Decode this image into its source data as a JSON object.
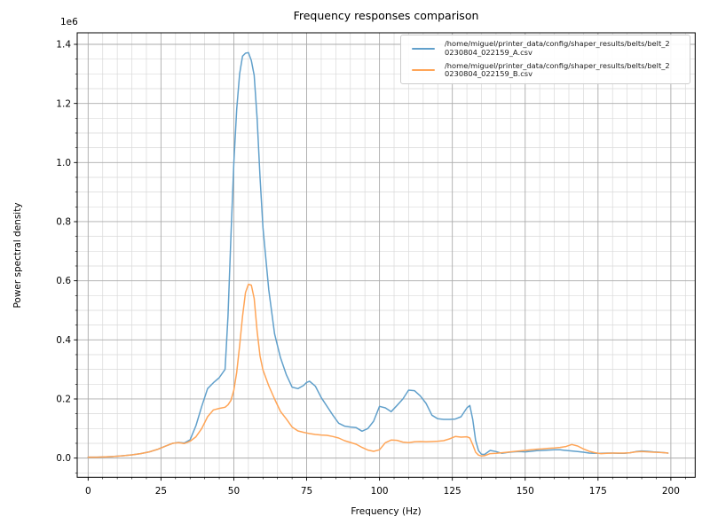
{
  "figure": {
    "title": "Frequency responses comparison",
    "xlabel": "Frequency (Hz)",
    "ylabel": "Power spectral density",
    "offset_text": "1e6",
    "background": "#ffffff"
  },
  "legend": {
    "entries": [
      {
        "line1": "/home/miguel/printer_data/config/shaper_results/belts/belt_2",
        "line2": "0230804_022159_A.csv",
        "color": "#61a0cb"
      },
      {
        "line1": "/home/miguel/printer_data/config/shaper_results/belts/belt_2",
        "line2": "0230804_022159_B.csv",
        "color": "#ffa557"
      }
    ]
  },
  "chart_data": {
    "type": "line",
    "title": "Frequency responses comparison",
    "xlabel": "Frequency (Hz)",
    "ylabel": "Power spectral density",
    "y_offset_factor": "1e6",
    "grid": "both",
    "legend_position": "upper right",
    "xlim": [
      -3.75,
      208.35
    ],
    "ylim": [
      -65000,
      1439000
    ],
    "x_major_ticks": [
      0,
      25,
      50,
      75,
      100,
      125,
      150,
      175,
      200
    ],
    "x_tick_labels": [
      "0",
      "25",
      "50",
      "75",
      "100",
      "125",
      "150",
      "175",
      "200"
    ],
    "x_minor_ticks": [
      5,
      10,
      15,
      20,
      30,
      35,
      40,
      45,
      55,
      60,
      65,
      70,
      80,
      85,
      90,
      95,
      105,
      110,
      115,
      120,
      130,
      135,
      140,
      145,
      155,
      160,
      165,
      170,
      180,
      185,
      190,
      195,
      205
    ],
    "y_major_ticks": [
      0,
      200000,
      400000,
      600000,
      800000,
      1000000,
      1200000,
      1400000
    ],
    "y_tick_labels": [
      "0.0",
      "0.2",
      "0.4",
      "0.6",
      "0.8",
      "1.0",
      "1.2",
      "1.4"
    ],
    "y_minor_ticks": [
      -50000,
      50000,
      100000,
      150000,
      250000,
      300000,
      350000,
      450000,
      500000,
      550000,
      650000,
      700000,
      750000,
      850000,
      900000,
      950000,
      1050000,
      1100000,
      1150000,
      1250000,
      1300000,
      1350000
    ],
    "x": [
      0,
      3,
      6,
      9,
      12,
      15,
      18,
      21,
      24,
      27,
      29,
      31,
      33,
      35,
      37,
      39,
      41,
      43,
      45,
      47,
      48,
      49,
      50,
      51,
      52,
      53,
      54,
      55,
      56,
      57,
      58,
      59,
      60,
      62,
      64,
      66,
      68,
      70,
      72,
      74,
      75,
      76,
      78,
      80,
      82,
      84,
      86,
      88,
      90,
      92,
      94,
      96,
      98,
      100,
      102,
      104,
      106,
      108,
      110,
      112,
      114,
      116,
      118,
      120,
      122,
      124,
      126,
      128,
      130,
      131,
      132,
      133,
      134,
      135,
      136,
      138,
      140,
      142,
      144,
      146,
      148,
      150,
      152,
      154,
      156,
      158,
      160,
      162,
      164,
      166,
      168,
      170,
      172,
      174,
      176,
      178,
      180,
      182,
      184,
      186,
      188,
      190,
      192,
      194,
      196,
      198,
      199
    ],
    "series": [
      {
        "name": "/home/miguel/printer_data/config/shaper_results/belts/belt_20230804_022159_A.csv",
        "color": "#61a0cb",
        "values": [
          3000,
          3000,
          4000,
          5500,
          8000,
          11000,
          15000,
          21000,
          30000,
          42000,
          50000,
          53000,
          51000,
          62000,
          110000,
          175000,
          235000,
          255000,
          272000,
          300000,
          480000,
          750000,
          1000000,
          1180000,
          1300000,
          1360000,
          1370000,
          1372000,
          1345000,
          1295000,
          1150000,
          950000,
          780000,
          570000,
          420000,
          340000,
          283000,
          240000,
          235000,
          246000,
          256000,
          260000,
          243000,
          205000,
          175000,
          145000,
          118000,
          108000,
          105000,
          103000,
          91000,
          100000,
          125000,
          175000,
          170000,
          157000,
          178000,
          200000,
          230000,
          228000,
          210000,
          185000,
          145000,
          133000,
          131000,
          131000,
          132000,
          140000,
          170000,
          178000,
          130000,
          60000,
          25000,
          13000,
          12000,
          26000,
          22000,
          16000,
          19000,
          21000,
          22000,
          21000,
          23000,
          25000,
          26000,
          27000,
          28000,
          28000,
          26000,
          24000,
          22000,
          20000,
          17000,
          16000,
          16000,
          17000,
          17000,
          16000,
          16000,
          18000,
          22000,
          24000,
          23000,
          21000,
          20000,
          18000,
          17000
        ]
      },
      {
        "name": "/home/miguel/printer_data/config/shaper_results/belts/belt_20230804_022159_B.csv",
        "color": "#ffa557",
        "values": [
          3000,
          3000,
          4000,
          5500,
          8000,
          11000,
          15000,
          21000,
          30000,
          42000,
          50000,
          52000,
          49000,
          57000,
          72000,
          100000,
          140000,
          163000,
          168000,
          172000,
          180000,
          195000,
          230000,
          290000,
          380000,
          480000,
          560000,
          588000,
          585000,
          540000,
          430000,
          345000,
          298000,
          245000,
          200000,
          158000,
          133000,
          105000,
          92000,
          87000,
          85000,
          83000,
          80000,
          78000,
          77000,
          73000,
          68000,
          59000,
          53000,
          47000,
          36000,
          27000,
          23000,
          28000,
          52000,
          61000,
          60000,
          54000,
          52000,
          55000,
          56000,
          55000,
          56000,
          57000,
          59000,
          65000,
          73000,
          71000,
          72000,
          68000,
          45000,
          20000,
          10000,
          7000,
          8000,
          15000,
          16000,
          18000,
          20000,
          22000,
          24000,
          26000,
          28000,
          30000,
          31000,
          33000,
          34000,
          36000,
          39000,
          46000,
          41000,
          31000,
          23000,
          18000,
          15000,
          16000,
          17000,
          17000,
          17000,
          18000,
          21000,
          22000,
          21000,
          20000,
          19000,
          18000,
          17000
        ]
      }
    ],
    "style": {
      "major_grid_color": "#ababab",
      "minor_grid_color": "#d9d9d9",
      "spine_color": "#000000",
      "line_width": 1.5
    }
  }
}
